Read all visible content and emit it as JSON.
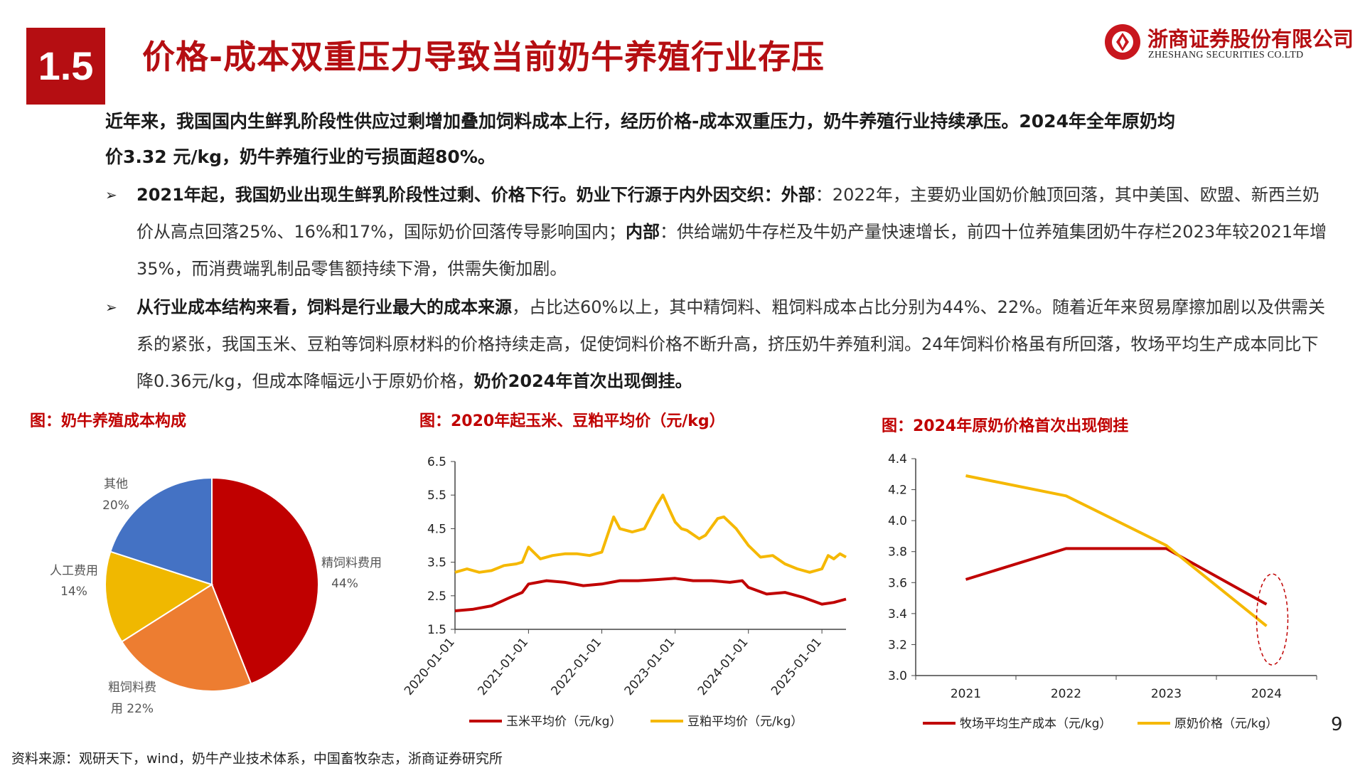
{
  "header": {
    "section_number": "1.5",
    "title": "价格-成本双重压力导致当前奶牛养殖行业存压",
    "logo_cn": "浙商证券股份有限公司",
    "logo_en": "ZHESHANG SECURITIES CO.LTD"
  },
  "summary": {
    "line1": "近年来，我国国内生鲜乳阶段性供应过剩增加叠加饲料成本上行，经历价格-成本双重压力，奶牛养殖行业持续承压。2024年全年原奶均",
    "line2": "价3.32 元/kg，奶牛养殖行业的亏损面超80%。"
  },
  "bullets": [
    {
      "arrow": "➢",
      "bold1": "2021年起，我国奶业出现生鲜乳阶段性过剩、价格下行。奶业下行源于内外因交织：外部",
      "text1": "：2022年，主要奶业国奶价触顶回落，其中美国、欧盟、新西兰奶价从高点回落25%、16%和17%，国际奶价回落传导影响国内；",
      "bold2": "内部",
      "text2": "：供给端奶牛存栏及牛奶产量快速增长，前四十位养殖集团奶牛存栏2023年较2021年增35%，而消费端乳制品零售额持续下滑，供需失衡加剧。"
    },
    {
      "arrow": "➢",
      "bold1": "从行业成本结构来看，饲料是行业最大的成本来源",
      "text1": "，占比达60%以上，其中精饲料、粗饲料成本占比分别为44%、22%。随着近年来贸易摩擦加剧以及供需关系的紧张，我国玉米、豆粕等饲料原材料的价格持续走高，促使饲料价格不断升高，挤压奶牛养殖利润。24年饲料价格虽有所回落，牧场平均生产成本同比下降0.36元/kg，但成本降幅远小于原奶价格，",
      "bold2": "奶价2024年首次出现倒挂。",
      "text2": ""
    }
  ],
  "figures": {
    "fig1_title": "图：奶牛养殖成本构成",
    "fig2_title": "图：2020年起玉米、豆粕平均价（元/kg）",
    "fig3_title": "图：2024年原奶价格首次出现倒挂"
  },
  "chart_data": [
    {
      "type": "pie",
      "title": "",
      "slices": [
        {
          "label": "精饲料费用",
          "value": 44,
          "value_label": "44%",
          "color": "#c00000"
        },
        {
          "label": "粗饲料费用",
          "value": 22,
          "value_label": "22%",
          "color": "#ed7d31"
        },
        {
          "label": "人工费用",
          "value": 14,
          "value_label": "14%",
          "color": "#f0b800"
        },
        {
          "label": "其他",
          "value": 20,
          "value_label": "20%",
          "color": "#4472c4"
        }
      ],
      "slice_display": [
        "精饲料费用",
        "44%",
        "粗饲料费",
        "用 22%",
        "人工费用",
        "14%",
        "其他",
        "20%"
      ]
    },
    {
      "type": "line",
      "title": "",
      "xlabel": "",
      "ylabel": "",
      "ylim": [
        1.5,
        6.5
      ],
      "yticks": [
        "6.5",
        "5.5",
        "4.5",
        "3.5",
        "2.5",
        "1.5"
      ],
      "xticks": [
        "2020-01-01",
        "2021-01-01",
        "2022-01-01",
        "2023-01-01",
        "2024-01-01",
        "2025-01-01"
      ],
      "x_start": "2020-01-01",
      "x_end": "2025-05-01",
      "series": [
        {
          "name": "玉米平均价（元/kg）",
          "color": "#c00000",
          "points": [
            [
              "2020-01-01",
              2.05
            ],
            [
              "2020-04-01",
              2.1
            ],
            [
              "2020-07-01",
              2.2
            ],
            [
              "2020-10-01",
              2.45
            ],
            [
              "2020-12-01",
              2.6
            ],
            [
              "2021-01-01",
              2.85
            ],
            [
              "2021-04-01",
              2.95
            ],
            [
              "2021-07-01",
              2.9
            ],
            [
              "2021-10-01",
              2.8
            ],
            [
              "2022-01-01",
              2.85
            ],
            [
              "2022-04-01",
              2.95
            ],
            [
              "2022-07-01",
              2.95
            ],
            [
              "2022-10-01",
              2.98
            ],
            [
              "2023-01-01",
              3.02
            ],
            [
              "2023-04-01",
              2.95
            ],
            [
              "2023-07-01",
              2.95
            ],
            [
              "2023-10-01",
              2.9
            ],
            [
              "2023-12-01",
              2.95
            ],
            [
              "2024-01-01",
              2.75
            ],
            [
              "2024-04-01",
              2.55
            ],
            [
              "2024-07-01",
              2.6
            ],
            [
              "2024-10-01",
              2.45
            ],
            [
              "2025-01-01",
              2.25
            ],
            [
              "2025-03-01",
              2.3
            ],
            [
              "2025-05-01",
              2.4
            ]
          ]
        },
        {
          "name": "豆粕平均价（元/kg）",
          "color": "#f5b800",
          "points": [
            [
              "2020-01-01",
              3.2
            ],
            [
              "2020-03-01",
              3.3
            ],
            [
              "2020-05-01",
              3.2
            ],
            [
              "2020-07-01",
              3.25
            ],
            [
              "2020-09-01",
              3.4
            ],
            [
              "2020-11-01",
              3.45
            ],
            [
              "2020-12-01",
              3.5
            ],
            [
              "2021-01-01",
              3.95
            ],
            [
              "2021-03-01",
              3.6
            ],
            [
              "2021-05-01",
              3.7
            ],
            [
              "2021-07-01",
              3.75
            ],
            [
              "2021-09-01",
              3.75
            ],
            [
              "2021-11-01",
              3.7
            ],
            [
              "2022-01-01",
              3.8
            ],
            [
              "2022-03-01",
              4.85
            ],
            [
              "2022-04-01",
              4.5
            ],
            [
              "2022-06-01",
              4.4
            ],
            [
              "2022-08-01",
              4.5
            ],
            [
              "2022-10-01",
              5.2
            ],
            [
              "2022-11-01",
              5.5
            ],
            [
              "2022-12-01",
              5.1
            ],
            [
              "2023-01-01",
              4.7
            ],
            [
              "2023-02-01",
              4.5
            ],
            [
              "2023-03-01",
              4.45
            ],
            [
              "2023-05-01",
              4.2
            ],
            [
              "2023-06-01",
              4.3
            ],
            [
              "2023-08-01",
              4.8
            ],
            [
              "2023-09-01",
              4.85
            ],
            [
              "2023-11-01",
              4.5
            ],
            [
              "2024-01-01",
              4.0
            ],
            [
              "2024-03-01",
              3.65
            ],
            [
              "2024-05-01",
              3.7
            ],
            [
              "2024-07-01",
              3.45
            ],
            [
              "2024-09-01",
              3.3
            ],
            [
              "2024-11-01",
              3.2
            ],
            [
              "2025-01-01",
              3.3
            ],
            [
              "2025-02-01",
              3.7
            ],
            [
              "2025-03-01",
              3.6
            ],
            [
              "2025-04-01",
              3.75
            ],
            [
              "2025-05-01",
              3.65
            ]
          ]
        }
      ],
      "legend_position": "bottom"
    },
    {
      "type": "line",
      "title": "",
      "xlabel": "",
      "ylabel": "",
      "ylim": [
        3.0,
        4.4
      ],
      "yticks": [
        "4.4",
        "4.2",
        "4.0",
        "3.8",
        "3.6",
        "3.4",
        "3.2",
        "3.0"
      ],
      "categories": [
        "2021",
        "2022",
        "2023",
        "2024"
      ],
      "series": [
        {
          "name": "牧场平均生产成本（元/kg）",
          "color": "#c00000",
          "values": [
            3.62,
            3.82,
            3.82,
            3.46
          ]
        },
        {
          "name": "原奶价格（元/kg）",
          "color": "#f5b800",
          "values": [
            4.29,
            4.16,
            3.84,
            3.32
          ]
        }
      ],
      "highlight_category": "2024",
      "legend_position": "bottom"
    }
  ],
  "page_number": "9",
  "source_note": "资料来源：观研天下，wind，奶牛产业技术体系，中国畜牧杂志，浙商证券研究所"
}
